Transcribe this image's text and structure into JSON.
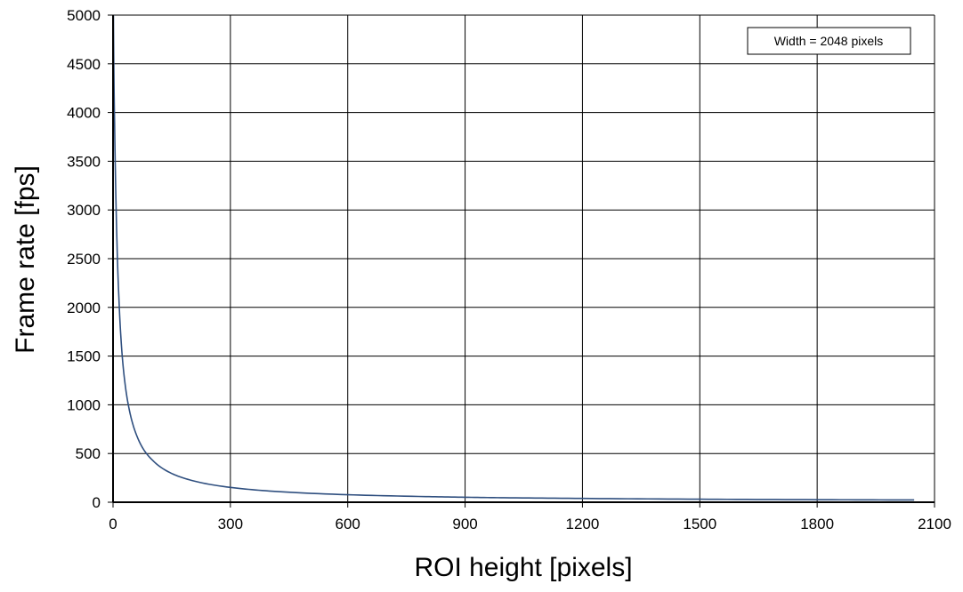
{
  "chart_data": {
    "type": "line",
    "title": "",
    "xlabel": "ROI height [pixels]",
    "ylabel": "Frame rate [fps]",
    "xlim": [
      0,
      2100
    ],
    "ylim": [
      0,
      5000
    ],
    "x_ticks": [
      0,
      300,
      600,
      900,
      1200,
      1500,
      1800,
      2100
    ],
    "y_ticks": [
      0,
      500,
      1000,
      1500,
      2000,
      2500,
      3000,
      3500,
      4000,
      4500,
      5000
    ],
    "grid": true,
    "annotation": "Width = 2048 pixels",
    "colors": {
      "series": "#2f4f7f",
      "grid": "#000000"
    },
    "series": [
      {
        "x": [
          1,
          2,
          4,
          6,
          8,
          10,
          15,
          20,
          25,
          30,
          40,
          50,
          60,
          80,
          100,
          150,
          200,
          300,
          400,
          600,
          800,
          900,
          1000,
          1200,
          1500,
          1800,
          2048
        ],
        "values": [
          5000,
          4500,
          3900,
          3400,
          3000,
          2680,
          2100,
          1700,
          1430,
          1240,
          980,
          810,
          690,
          530,
          435,
          295,
          225,
          152,
          115,
          77,
          58,
          51,
          46,
          39,
          31,
          26,
          23
        ]
      }
    ]
  }
}
